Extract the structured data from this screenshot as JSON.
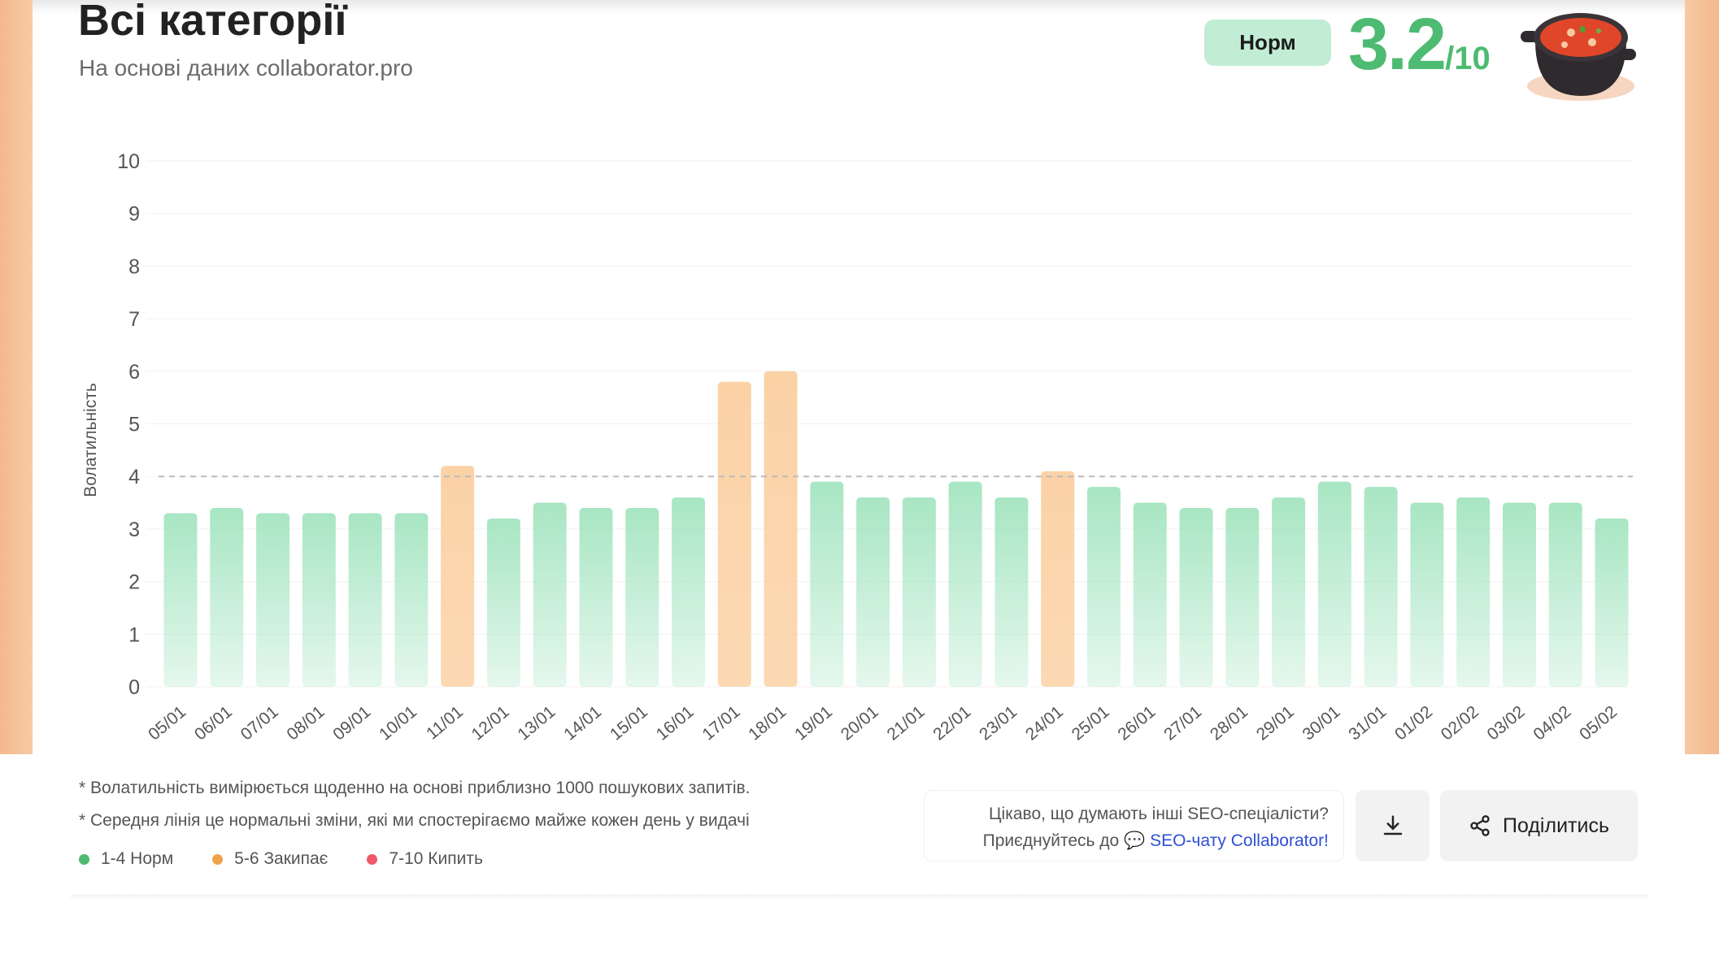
{
  "header": {
    "title": "Всі категорії",
    "subtitle": "На основі даних collaborator.pro",
    "status_badge": "Норм",
    "score": "3.2",
    "score_max": "/10",
    "status_color": "#4dbb71"
  },
  "chart_data": {
    "type": "bar",
    "ylabel": "Волатильність",
    "ylim": [
      0,
      10
    ],
    "yticks": [
      0,
      1,
      2,
      3,
      4,
      5,
      6,
      7,
      8,
      9,
      10
    ],
    "grid": true,
    "reference_line": 4,
    "categories": [
      "05/01",
      "06/01",
      "07/01",
      "08/01",
      "09/01",
      "10/01",
      "11/01",
      "12/01",
      "13/01",
      "14/01",
      "15/01",
      "16/01",
      "17/01",
      "18/01",
      "19/01",
      "20/01",
      "21/01",
      "22/01",
      "23/01",
      "24/01",
      "25/01",
      "26/01",
      "27/01",
      "28/01",
      "29/01",
      "30/01",
      "31/01",
      "01/02",
      "02/02",
      "03/02",
      "04/02",
      "05/02"
    ],
    "values": [
      3.3,
      3.4,
      3.3,
      3.3,
      3.3,
      3.3,
      4.2,
      3.2,
      3.5,
      3.4,
      3.4,
      3.6,
      5.8,
      6.0,
      3.9,
      3.6,
      3.6,
      3.9,
      3.6,
      4.1,
      3.8,
      3.5,
      3.4,
      3.4,
      3.6,
      3.9,
      3.8,
      3.5,
      3.6,
      3.5,
      3.5,
      3.2
    ],
    "colors": {
      "normal": "#a8e6c3",
      "elevated": "#fbd2a6"
    }
  },
  "footer": {
    "notes": [
      "* Волатильність вимірюється щоденно на основі приблизно 1000 пошукових запитів.",
      "* Середня лінія це нормальні зміни, які ми спостерігаємо майже кожен день у видачі"
    ],
    "legend": [
      {
        "label": "1-4 Норм",
        "color": "#4dbb71"
      },
      {
        "label": "5-6 Закипає",
        "color": "#f0a14c"
      },
      {
        "label": "7-10 Кипить",
        "color": "#ef5a6a"
      }
    ],
    "chat_question": "Цікаво, що думають інші SEO-спеціалісти?",
    "chat_join": "Приєднуйтесь до",
    "chat_link": "SEO-чату Collaborator!",
    "share_label": "Поділитись"
  }
}
